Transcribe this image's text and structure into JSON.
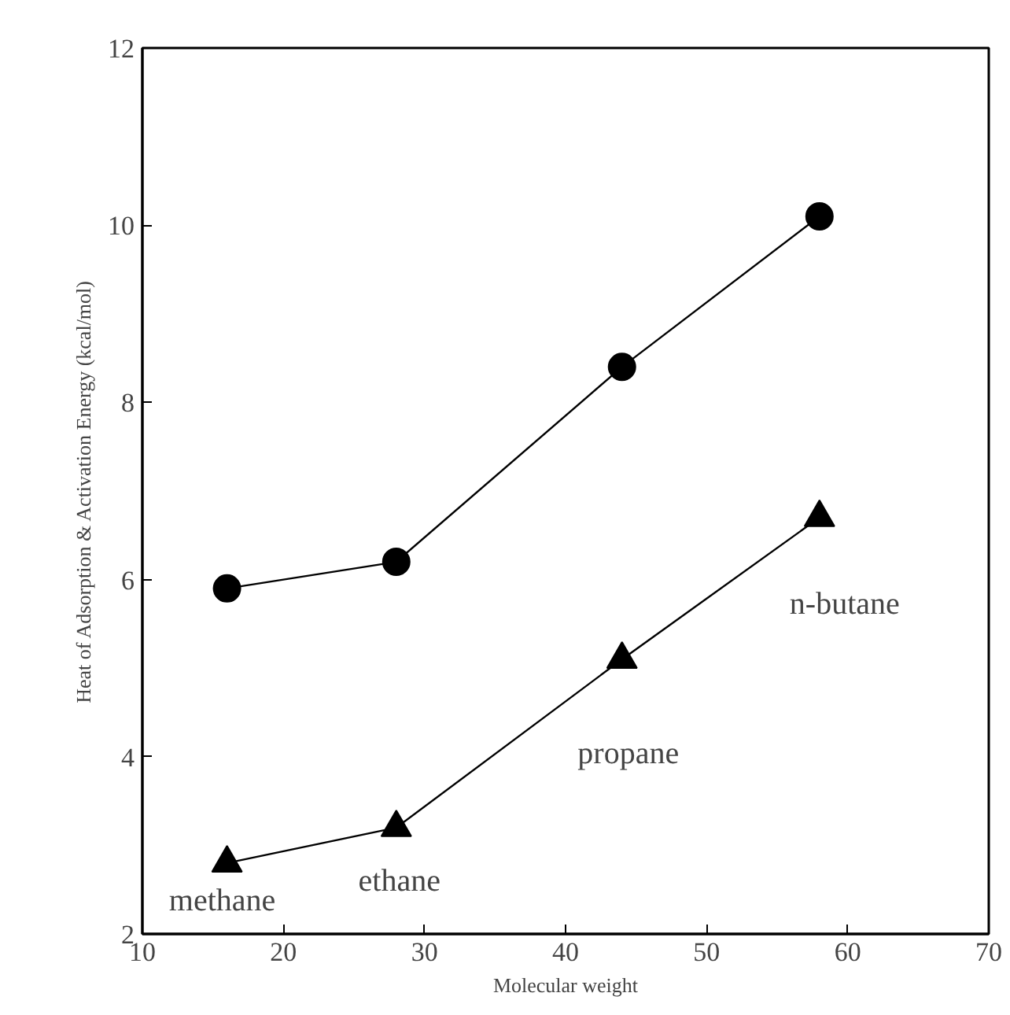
{
  "chart_data": {
    "type": "line",
    "xlabel": "Molecular weight",
    "ylabel": "Heat of Adsorption & Activation Energy (kcal/mol)",
    "series": [
      {
        "color": "#000000",
        "marker": "circle",
        "x": [
          16,
          28,
          44,
          58
        ],
        "values": [
          5.9,
          6.2,
          8.4,
          10.1
        ]
      },
      {
        "color": "#000000",
        "marker": "triangle",
        "x": [
          16,
          28,
          44,
          58
        ],
        "values": [
          2.8,
          3.2,
          5.1,
          6.7
        ]
      }
    ],
    "xlim": [
      10,
      70
    ],
    "xticks": [
      10,
      20,
      30,
      40,
      50,
      60,
      70
    ],
    "ylim": [
      2,
      12
    ],
    "yticks": [
      2,
      4,
      6,
      8,
      10,
      12
    ],
    "grid": false,
    "line_style": "solid",
    "annotations": [
      "methane",
      "ethane",
      "propane",
      "n-butane"
    ]
  }
}
